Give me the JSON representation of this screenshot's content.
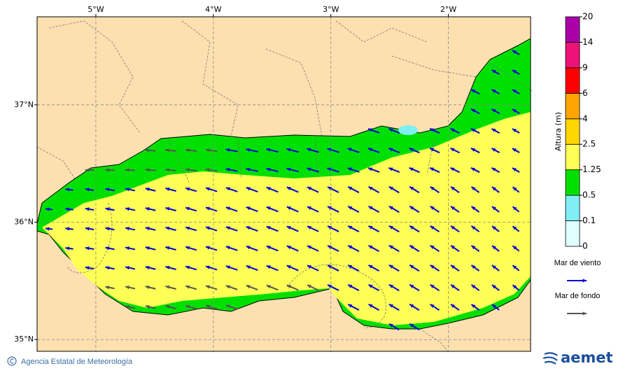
{
  "map": {
    "xlim": [
      -5.5,
      -1.3
    ],
    "ylim": [
      34.9,
      37.75
    ],
    "xticks": [
      {
        "value": -5,
        "label": "5°W"
      },
      {
        "value": -4,
        "label": "4°W"
      },
      {
        "value": -3,
        "label": "3°W"
      },
      {
        "value": -2,
        "label": "2°W"
      }
    ],
    "yticks": [
      {
        "value": 37,
        "label": "37°N"
      },
      {
        "value": 36,
        "label": "36°N"
      },
      {
        "value": 35,
        "label": "35°N"
      }
    ]
  },
  "colorbar": {
    "title": "Altura (m)",
    "levels": [
      0,
      0.1,
      0.5,
      1.25,
      2.5,
      4,
      6,
      9,
      14,
      20
    ],
    "colors": [
      "#e0ffff",
      "#80eef5",
      "#00e000",
      "#ffff55",
      "#ffd700",
      "#ffa500",
      "#ff0000",
      "#ee1177",
      "#aa00aa"
    ]
  },
  "legend": {
    "items": [
      {
        "label": "Mar de viento",
        "color": "#0000dd"
      },
      {
        "label": "Mar de fondo",
        "color": "#555555"
      }
    ]
  },
  "footer": {
    "credit": "Agencia Estatal de Meteorología",
    "logo": "aemet"
  }
}
